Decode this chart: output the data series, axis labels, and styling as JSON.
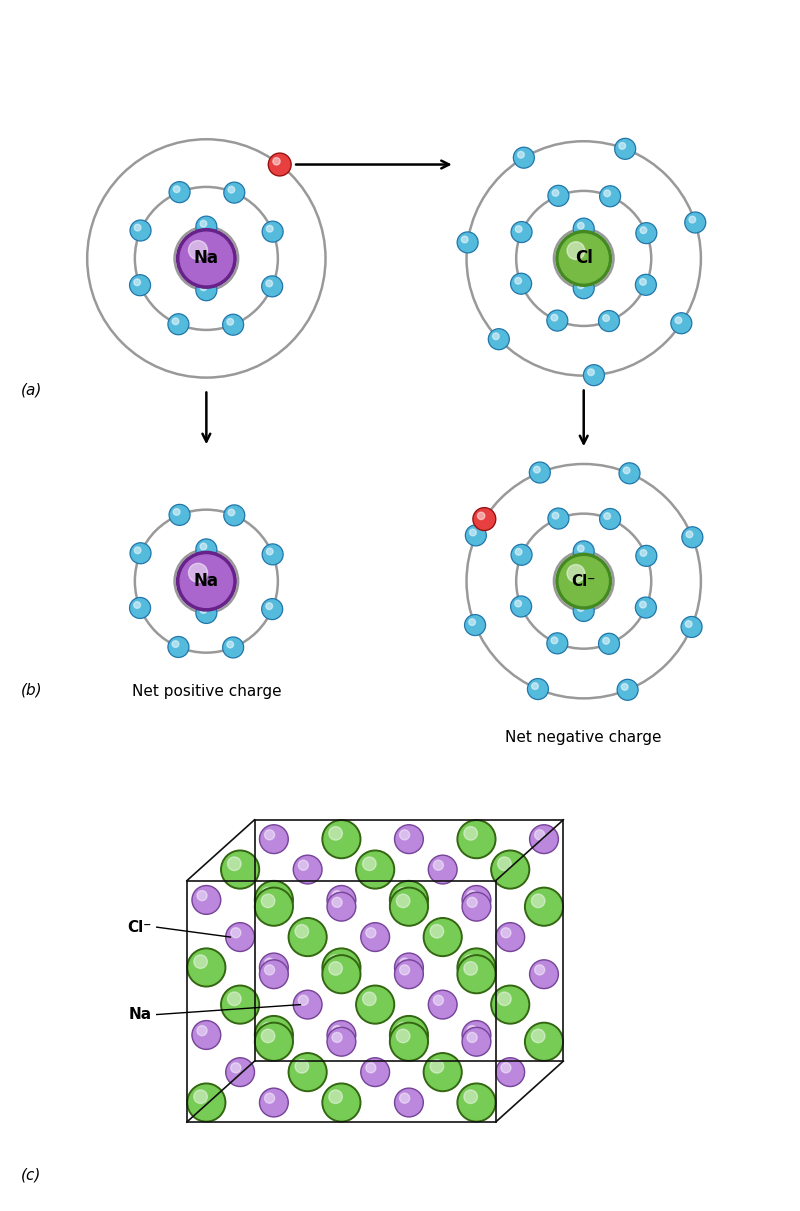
{
  "bg_color": "#ffffff",
  "electron_color": "#55bbdd",
  "electron_edge": "#2277aa",
  "electron_r": 0.11,
  "transferred_electron_color": "#e84040",
  "transferred_electron_edge": "#991010",
  "na_color": "#aa66cc",
  "na_edge": "#662288",
  "cl_color": "#77bb44",
  "cl_edge": "#448822",
  "orbit_color": "#999999",
  "orbit_lw": 1.8,
  "label_color": "#000000",
  "label_a": "(a)",
  "label_b": "(b)",
  "label_c": "(c)",
  "text_net_pos": "Net positive charge",
  "text_net_neg": "Net negative charge",
  "arrow_color": "#000000",
  "cl_crystal_color": "#77cc55",
  "cl_crystal_edge": "#336611",
  "na_crystal_color": "#bb88dd",
  "na_crystal_edge": "#774499"
}
